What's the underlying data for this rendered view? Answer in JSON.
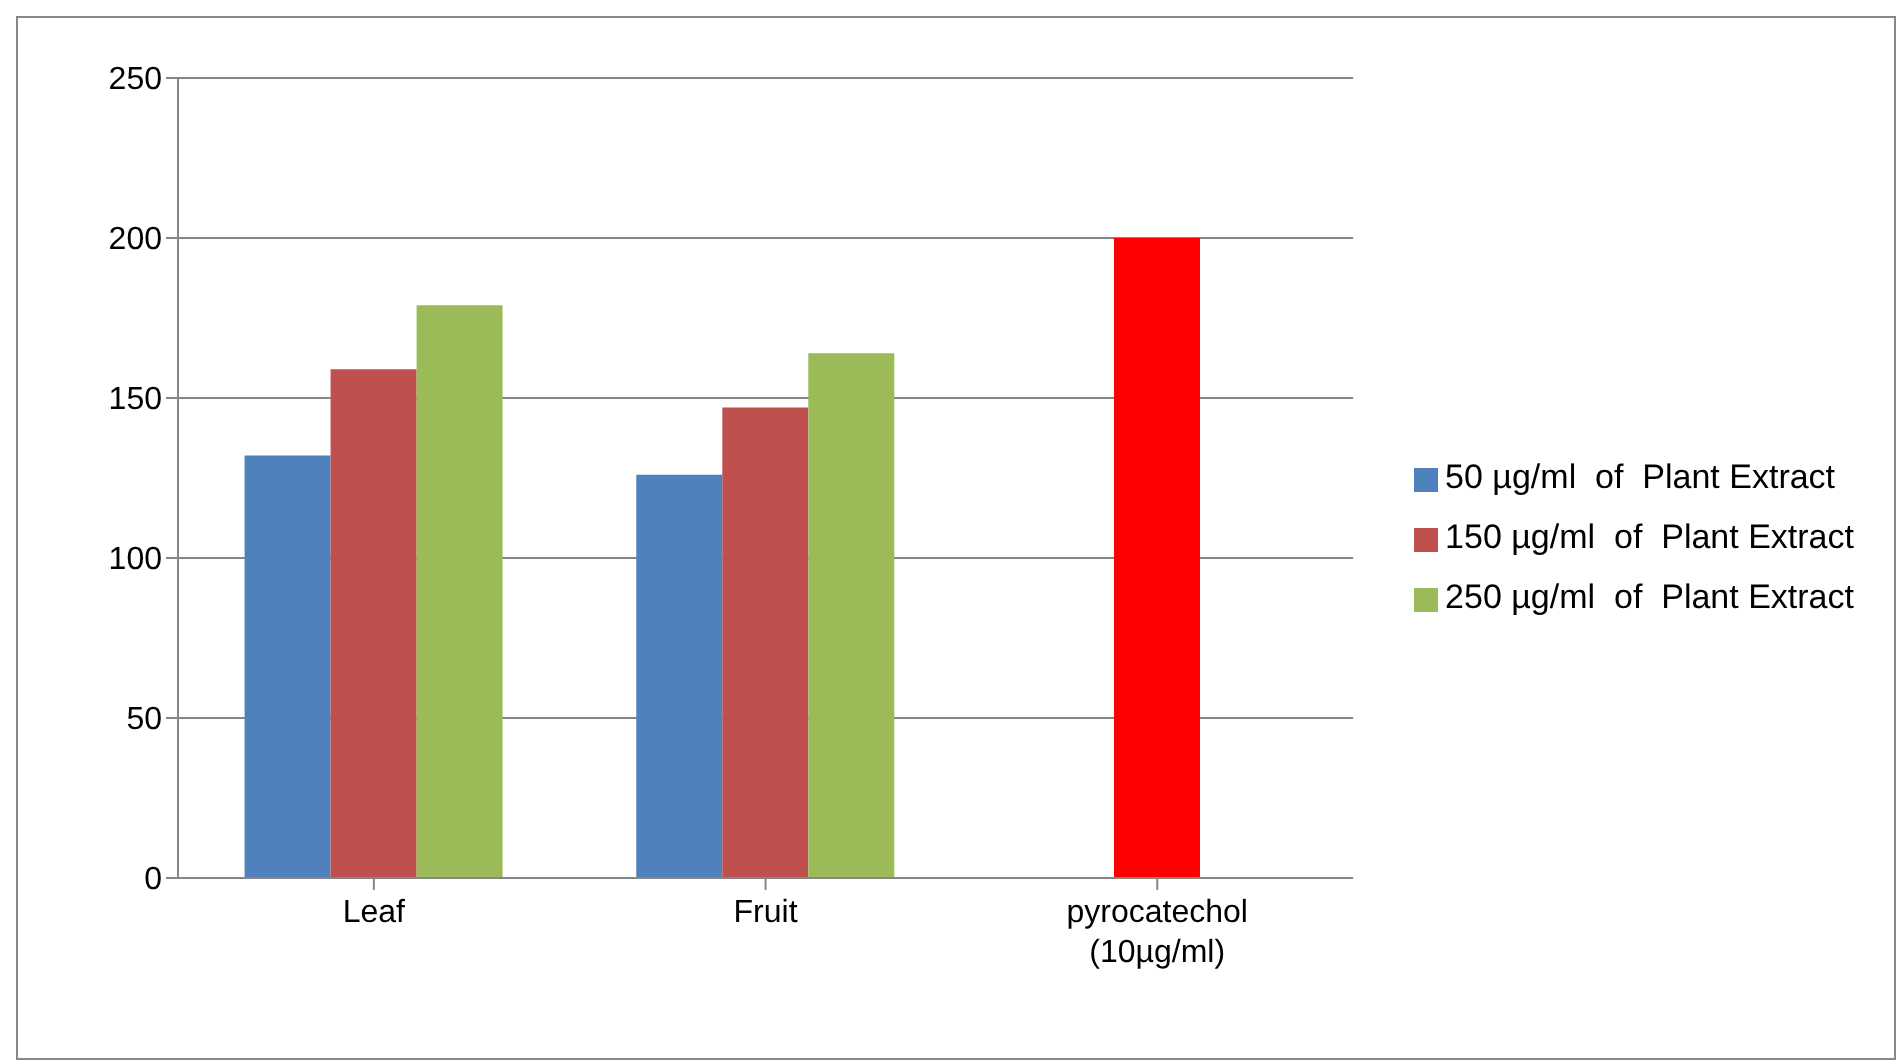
{
  "chart_data": {
    "type": "bar",
    "categories": [
      "Leaf",
      "Fruit",
      "pyrocatechol (10µg/ml)"
    ],
    "series": [
      {
        "name": "50 µg/ml  of  Plant Extract",
        "color": "#4f81bd",
        "values": [
          132,
          126,
          null
        ]
      },
      {
        "name": "150 µg/ml  of  Plant Extract",
        "color": "#c0504d",
        "colors": [
          "#c0504d",
          "#c0504d",
          "#ff0000"
        ],
        "values": [
          159,
          147,
          200
        ]
      },
      {
        "name": "250 µg/ml  of  Plant Extract",
        "color": "#9bbb59",
        "values": [
          179,
          164,
          null
        ]
      }
    ],
    "ylim": [
      0,
      250
    ],
    "yticks": [
      0,
      50,
      100,
      150,
      200,
      250
    ],
    "grid": "y",
    "legend": "right"
  }
}
